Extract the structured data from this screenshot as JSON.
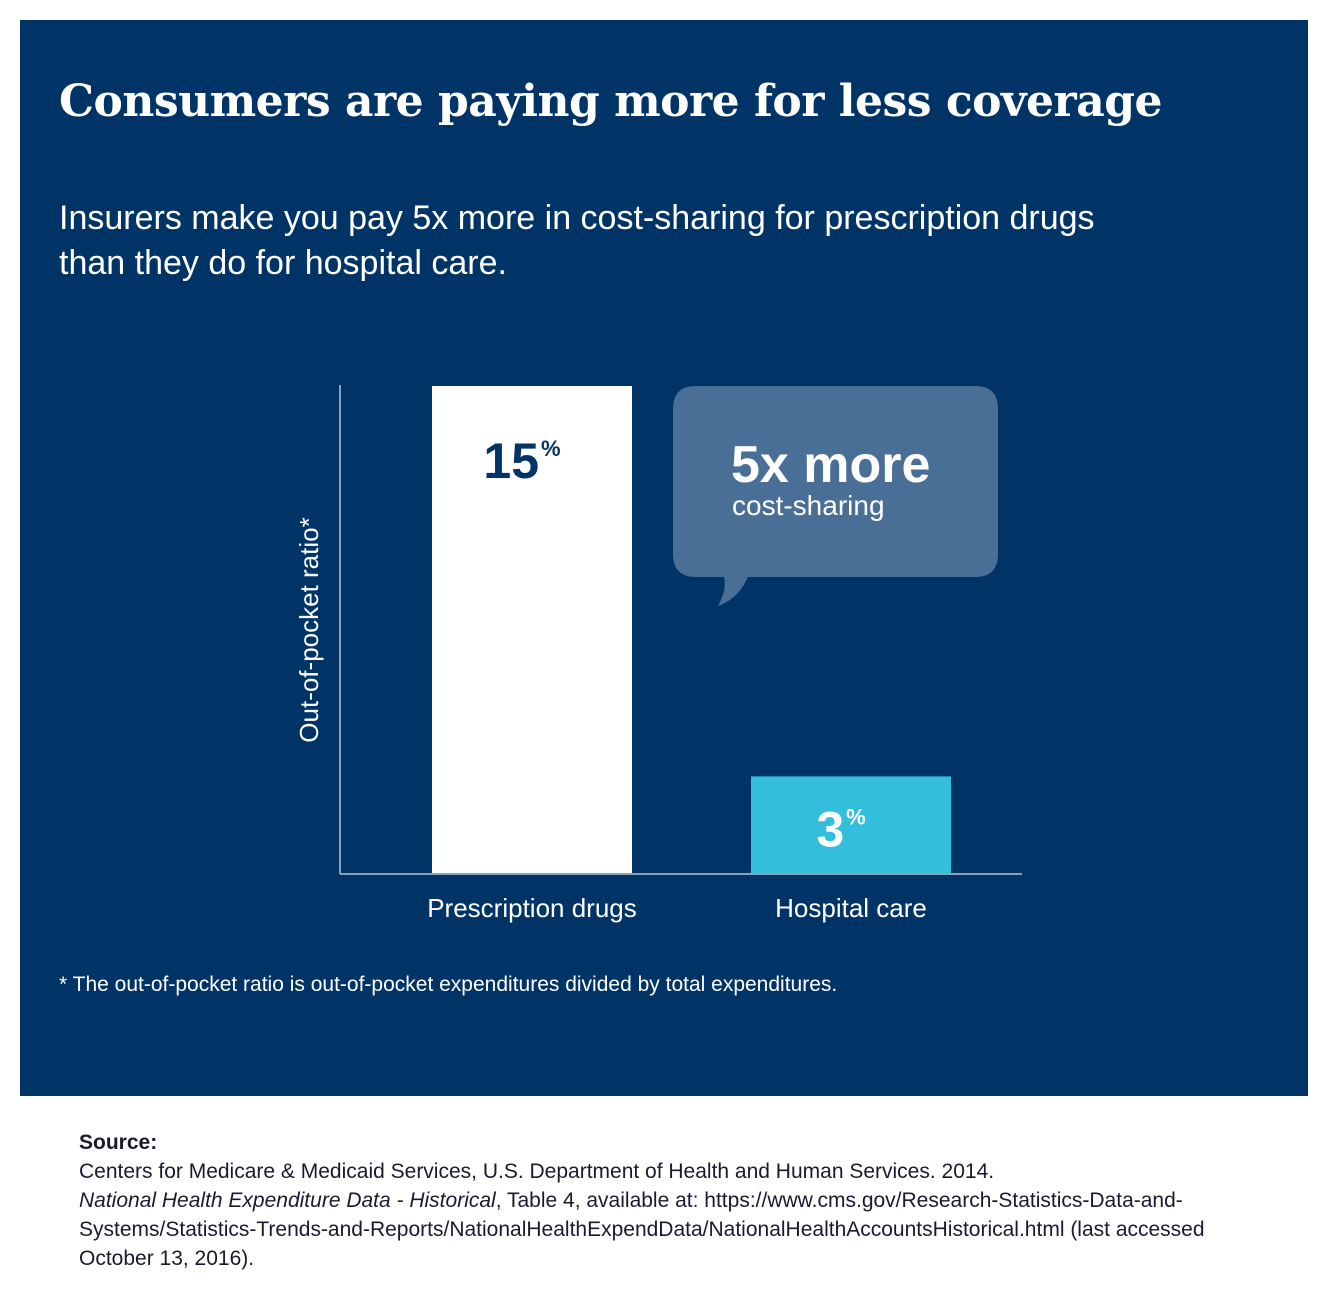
{
  "title": "Consumers are paying more for less coverage",
  "subtitle": "Insurers make you pay 5x more in cost-sharing for prescription drugs than they do for hospital care.",
  "chart_data": {
    "type": "bar",
    "categories": [
      "Prescription drugs",
      "Hospital care"
    ],
    "values": [
      15,
      3
    ],
    "value_labels": [
      "15",
      "3"
    ],
    "value_suffix": "%",
    "ylabel": "Out-of-pocket ratio*",
    "xlabel": "",
    "ylim": [
      0,
      15
    ],
    "grid": false,
    "colors": [
      "#ffffff",
      "#33bfdb"
    ],
    "label_colors": [
      "#003366",
      "#ffffff"
    ],
    "annotation": {
      "headline": "5x more",
      "detail": "cost-sharing",
      "color": "#4a6f96"
    }
  },
  "footnote": "* The out-of-pocket ratio is out-of-pocket expenditures divided by total expenditures.",
  "source": {
    "heading": "Source:",
    "line1": "Centers for Medicare & Medicaid Services, U.S. Department of Health and Human Services. 2014.",
    "publication": "National Health Expenditure Data - Historical",
    "line2_rest": ", Table 4, available at: https://www.cms.gov/Research-Statistics-Data-and-Systems/Statistics-Trends-and-Reports/NationalHealthExpendData/NationalHealthAccountsHistorical.html (last accessed October 13, 2016)."
  },
  "colors": {
    "background_panel": "#003366",
    "text_light": "#ffffff",
    "axis": "#8aa1bd"
  }
}
